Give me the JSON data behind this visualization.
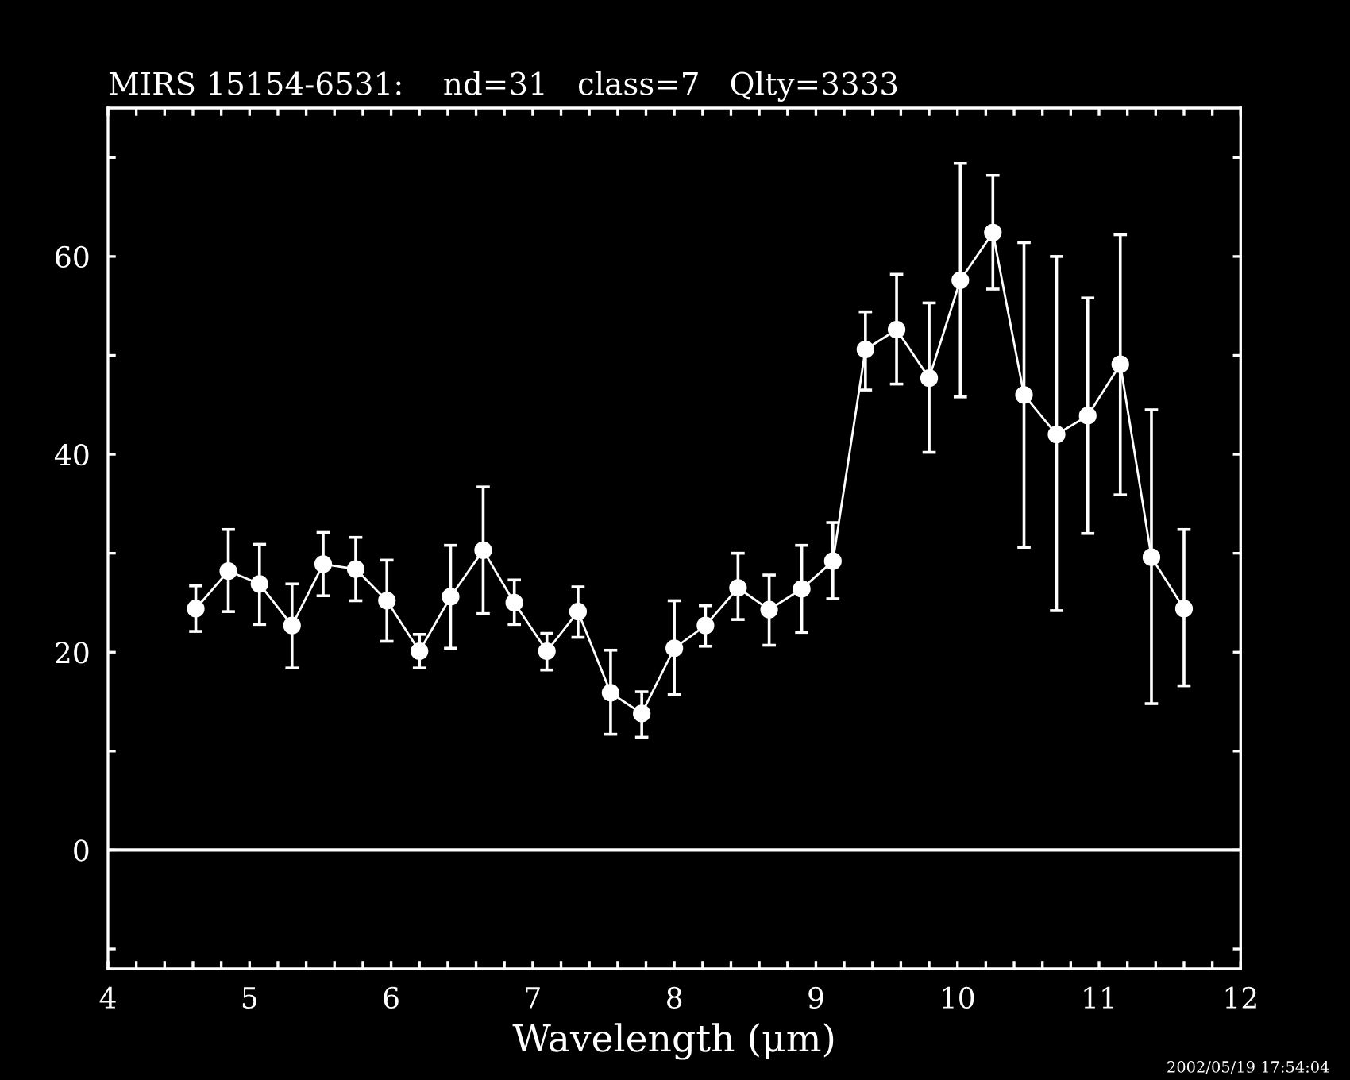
{
  "chart_data": {
    "type": "line",
    "title": "MIRS 15154-6531:    nd=31   class=7   Qlty=3333",
    "xlabel": "Wavelength (μm)",
    "x": [
      4.62,
      4.85,
      5.07,
      5.3,
      5.52,
      5.75,
      5.97,
      6.2,
      6.42,
      6.65,
      6.87,
      7.1,
      7.32,
      7.55,
      7.77,
      8.0,
      8.22,
      8.45,
      8.67,
      8.9,
      9.12,
      9.35,
      9.57,
      9.8,
      10.02,
      10.25,
      10.47,
      10.7,
      10.92,
      11.15,
      11.37,
      11.6
    ],
    "series": [
      {
        "color": "#ffffff",
        "values": [
          24.4,
          28.2,
          26.9,
          22.7,
          28.9,
          28.4,
          25.2,
          20.1,
          25.6,
          30.3,
          25.0,
          20.1,
          24.1,
          15.9,
          13.8,
          20.4,
          22.7,
          26.5,
          24.3,
          26.4,
          29.2,
          50.6,
          52.6,
          47.7,
          57.6,
          62.4,
          46.0,
          42.0,
          43.9,
          49.1,
          29.6,
          24.4
        ],
        "errors": [
          [
            22.1,
            26.7
          ],
          [
            24.1,
            32.4
          ],
          [
            22.8,
            30.9
          ],
          [
            18.4,
            26.9
          ],
          [
            25.7,
            32.1
          ],
          [
            25.2,
            31.6
          ],
          [
            21.1,
            29.3
          ],
          [
            18.4,
            21.8
          ],
          [
            20.4,
            30.8
          ],
          [
            23.9,
            36.7
          ],
          [
            22.8,
            27.3
          ],
          [
            18.2,
            21.9
          ],
          [
            21.5,
            26.6
          ],
          [
            11.7,
            20.2
          ],
          [
            11.4,
            16.0
          ],
          [
            15.7,
            25.2
          ],
          [
            20.6,
            24.7
          ],
          [
            23.3,
            30.0
          ],
          [
            20.7,
            27.8
          ],
          [
            22.0,
            30.8
          ],
          [
            25.4,
            33.1
          ],
          [
            46.5,
            54.4
          ],
          [
            47.1,
            58.2
          ],
          [
            40.2,
            55.3
          ],
          [
            45.8,
            69.4
          ],
          [
            56.7,
            68.2
          ],
          [
            30.6,
            61.4
          ],
          [
            24.2,
            60.0
          ],
          [
            32.0,
            55.8
          ],
          [
            35.9,
            62.2
          ],
          [
            14.8,
            44.5
          ],
          [
            16.6,
            32.4
          ]
        ]
      }
    ],
    "marker": "circle",
    "line_style": "solid",
    "grid": false,
    "legend": false,
    "xlim": [
      4,
      12
    ],
    "ylim": [
      -12,
      75
    ],
    "xticks": [
      4,
      {
        "value": 4.2,
        "label": null
      },
      {
        "value": 4.4,
        "label": null
      },
      {
        "value": 4.6,
        "label": null
      },
      {
        "value": 4.8,
        "label": null
      },
      5,
      {
        "value": 5.2,
        "label": null
      },
      {
        "value": 5.4,
        "label": null
      },
      {
        "value": 5.6,
        "label": null
      },
      {
        "value": 5.8,
        "label": null
      },
      6,
      {
        "value": 6.2,
        "label": null
      },
      {
        "value": 6.4,
        "label": null
      },
      {
        "value": 6.6,
        "label": null
      },
      {
        "value": 6.8,
        "label": null
      },
      7,
      {
        "value": 7.2,
        "label": null
      },
      {
        "value": 7.4,
        "label": null
      },
      {
        "value": 7.6,
        "label": null
      },
      {
        "value": 7.8,
        "label": null
      },
      8,
      {
        "value": 8.2,
        "label": null
      },
      {
        "value": 8.4,
        "label": null
      },
      {
        "value": 8.6,
        "label": null
      },
      {
        "value": 8.8,
        "label": null
      },
      9,
      {
        "value": 9.2,
        "label": null
      },
      {
        "value": 9.4,
        "label": null
      },
      {
        "value": 9.6,
        "label": null
      },
      {
        "value": 9.8,
        "label": null
      },
      10,
      {
        "value": 10.2,
        "label": null
      },
      {
        "value": 10.4,
        "label": null
      },
      {
        "value": 10.6,
        "label": null
      },
      {
        "value": 10.8,
        "label": null
      },
      11,
      {
        "value": 11.2,
        "label": null
      },
      {
        "value": 11.4,
        "label": null
      },
      {
        "value": 11.6,
        "label": null
      },
      {
        "value": 11.8,
        "label": null
      },
      12
    ],
    "yticks": [
      {
        "value": -10,
        "label": null
      },
      0,
      {
        "value": 10,
        "label": null
      },
      20,
      {
        "value": 30,
        "label": null
      },
      40,
      {
        "value": 50,
        "label": null
      },
      60,
      {
        "value": 70,
        "label": null
      }
    ],
    "ref_lines": [
      {
        "axis": "y",
        "value": 0,
        "color": "#ffffff",
        "line_style": "solid"
      }
    ],
    "annotations": [
      "2002/05/19 17:54:04"
    ]
  }
}
